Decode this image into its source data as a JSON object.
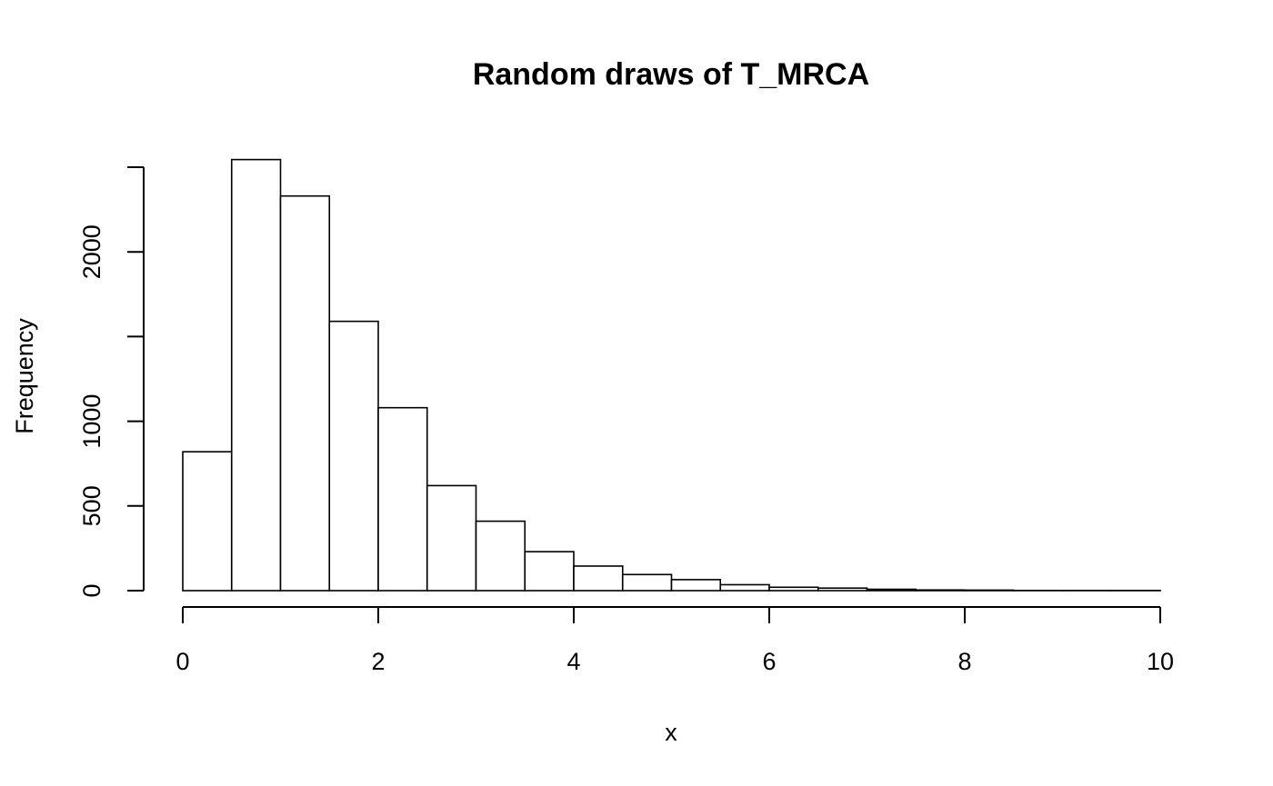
{
  "chart_data": {
    "type": "bar",
    "title": "Random draws of T_MRCA",
    "xlabel": "x",
    "ylabel": "Frequency",
    "bin_width": 0.5,
    "bins": [
      {
        "start": 0.0,
        "end": 0.5,
        "count": 820
      },
      {
        "start": 0.5,
        "end": 1.0,
        "count": 2545
      },
      {
        "start": 1.0,
        "end": 1.5,
        "count": 2330
      },
      {
        "start": 1.5,
        "end": 2.0,
        "count": 1590
      },
      {
        "start": 2.0,
        "end": 2.5,
        "count": 1080
      },
      {
        "start": 2.5,
        "end": 3.0,
        "count": 620
      },
      {
        "start": 3.0,
        "end": 3.5,
        "count": 410
      },
      {
        "start": 3.5,
        "end": 4.0,
        "count": 230
      },
      {
        "start": 4.0,
        "end": 4.5,
        "count": 145
      },
      {
        "start": 4.5,
        "end": 5.0,
        "count": 95
      },
      {
        "start": 5.0,
        "end": 5.5,
        "count": 65
      },
      {
        "start": 5.5,
        "end": 6.0,
        "count": 35
      },
      {
        "start": 6.0,
        "end": 6.5,
        "count": 20
      },
      {
        "start": 6.5,
        "end": 7.0,
        "count": 15
      },
      {
        "start": 7.0,
        "end": 7.5,
        "count": 8
      },
      {
        "start": 7.5,
        "end": 8.0,
        "count": 4
      },
      {
        "start": 8.0,
        "end": 8.5,
        "count": 3
      },
      {
        "start": 8.5,
        "end": 9.0,
        "count": 1
      },
      {
        "start": 9.0,
        "end": 9.5,
        "count": 1
      },
      {
        "start": 9.5,
        "end": 10.0,
        "count": 1
      }
    ],
    "xlim": [
      0,
      10
    ],
    "ylim": [
      0,
      2500
    ],
    "x_ticks": [
      0,
      2,
      4,
      6,
      8,
      10
    ],
    "x_tick_labels": [
      "0",
      "2",
      "4",
      "6",
      "8",
      "10"
    ],
    "y_ticks": [
      0,
      500,
      1000,
      1500,
      2000,
      2500
    ],
    "y_tick_labels": [
      "0",
      "500",
      "1000",
      "",
      "2000",
      ""
    ],
    "grid": false,
    "legend": "none"
  }
}
